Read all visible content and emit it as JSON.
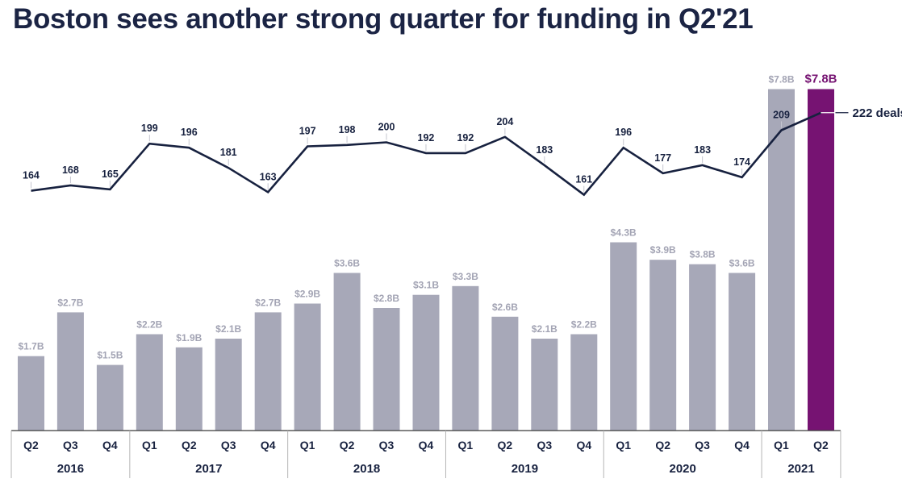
{
  "title": "Boston sees another strong quarter for funding in Q2'21",
  "chart_data": {
    "type": "bar",
    "title": "Boston sees another strong quarter for funding in Q2'21",
    "categories": [
      "Q2",
      "Q3",
      "Q4",
      "Q1",
      "Q2",
      "Q3",
      "Q4",
      "Q1",
      "Q2",
      "Q3",
      "Q4",
      "Q1",
      "Q2",
      "Q3",
      "Q4",
      "Q1",
      "Q2",
      "Q3",
      "Q4",
      "Q1",
      "Q2"
    ],
    "year_groups": [
      {
        "year": "2016",
        "count": 3
      },
      {
        "year": "2017",
        "count": 4
      },
      {
        "year": "2018",
        "count": 4
      },
      {
        "year": "2019",
        "count": 4
      },
      {
        "year": "2020",
        "count": 4
      },
      {
        "year": "2021",
        "count": 2
      }
    ],
    "series": [
      {
        "type": "bar",
        "values": [
          1.7,
          2.7,
          1.5,
          2.2,
          1.9,
          2.1,
          2.7,
          2.9,
          3.6,
          2.8,
          3.1,
          3.3,
          2.6,
          2.1,
          2.2,
          4.3,
          3.9,
          3.8,
          3.6,
          7.8,
          7.8
        ],
        "labels": [
          "$1.7B",
          "$2.7B",
          "$1.5B",
          "$2.2B",
          "$1.9B",
          "$2.1B",
          "$2.7B",
          "$2.9B",
          "$3.6B",
          "$2.8B",
          "$3.1B",
          "$3.3B",
          "$2.6B",
          "$2.1B",
          "$2.2B",
          "$4.3B",
          "$3.9B",
          "$3.8B",
          "$3.6B",
          "$7.8B",
          "$7.8B"
        ],
        "color": "#a7a8b8",
        "highlight_color": "#761372"
      },
      {
        "type": "line",
        "values": [
          164,
          168,
          165,
          199,
          196,
          181,
          163,
          197,
          198,
          200,
          192,
          192,
          204,
          183,
          161,
          196,
          177,
          183,
          174,
          209,
          222
        ],
        "labels": [
          "164",
          "168",
          "165",
          "199",
          "196",
          "181",
          "163",
          "197",
          "198",
          "200",
          "192",
          "192",
          "204",
          "183",
          "161",
          "196",
          "177",
          "183",
          "174",
          "209",
          "222 deals"
        ],
        "color": "#17213f"
      }
    ],
    "highlight_index": 20,
    "legend": "none",
    "grid": false
  }
}
